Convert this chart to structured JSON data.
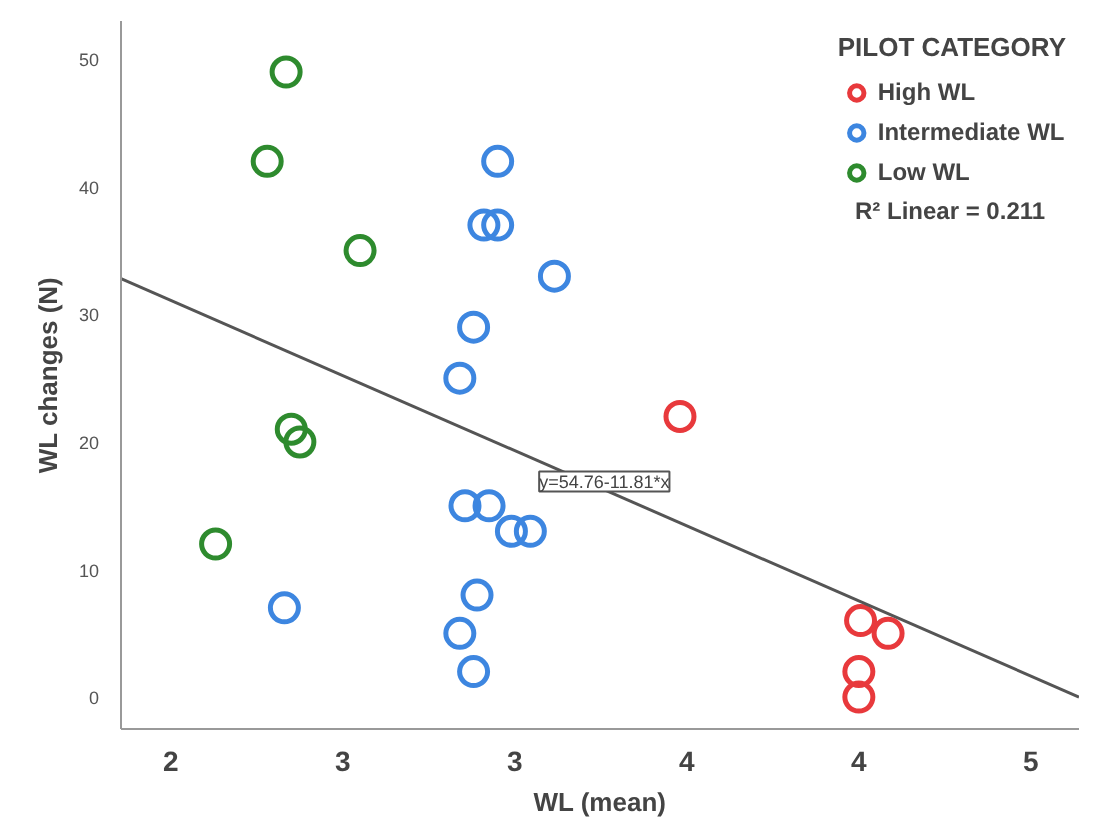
{
  "chart_data": {
    "type": "scatter",
    "xlabel": "WL (mean)",
    "ylabel": "WL changes (N)",
    "legend_title": "PILOT CATEGORY",
    "xlim": [
      1.855,
      4.64
    ],
    "ylim": [
      -2.5,
      53
    ],
    "xticks": [
      2,
      {
        "value": 2.5,
        "label": "3"
      },
      3,
      {
        "value": 3.5,
        "label": "4"
      },
      4,
      {
        "value": 4.5,
        "label": "5"
      }
    ],
    "yticks": [
      0,
      10,
      20,
      30,
      40,
      50
    ],
    "grid": false,
    "legend": "top right",
    "series": [
      {
        "name": "High WL",
        "color": "#e8393c",
        "marker": "circle",
        "x": [
          3.48,
          4.005,
          4.085,
          4.0,
          4.0
        ],
        "values": [
          22,
          6,
          5,
          2,
          0
        ]
      },
      {
        "name": "Intermediate WL",
        "color": "#3d86e0",
        "marker": "circle",
        "x": [
          2.95,
          2.91,
          2.95,
          3.115,
          2.88,
          2.84,
          2.33,
          2.855,
          2.925,
          2.99,
          3.045,
          2.89,
          2.84,
          2.88
        ],
        "values": [
          42,
          37,
          37,
          33,
          29,
          25,
          7,
          15,
          15,
          13,
          13,
          8,
          5,
          2
        ]
      },
      {
        "name": "Low WL",
        "color": "#2e8b2e",
        "marker": "circle",
        "x": [
          2.335,
          2.28,
          2.55,
          2.35,
          2.375,
          2.13
        ],
        "values": [
          49,
          42,
          35,
          21,
          20,
          12
        ]
      },
      {
        "type": "line",
        "color": "#555555",
        "marker": "none",
        "x": [
          1.855,
          4.64
        ],
        "values": [
          32.8,
          0.0
        ]
      }
    ],
    "annotations": [
      "R² Linear = 0.211",
      {
        "text": "y=54.76-11.81*x",
        "x": 3.26,
        "y": 16.9
      }
    ]
  }
}
